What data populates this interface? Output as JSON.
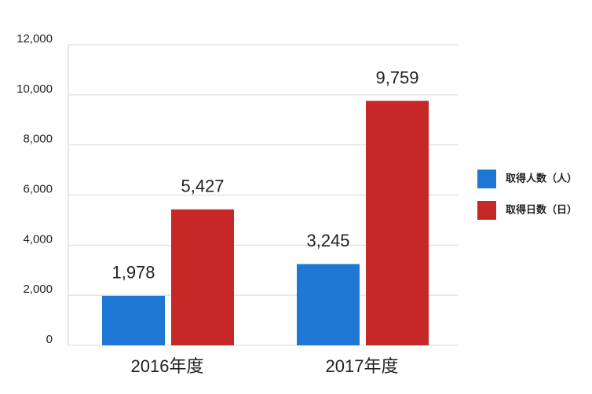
{
  "chart_data": {
    "type": "bar",
    "categories": [
      "2016年度",
      "2017年度"
    ],
    "series": [
      {
        "name": "取得人数（人）",
        "color": "#1e77d2",
        "values": [
          1978,
          3245
        ],
        "value_labels": [
          "1,978",
          "3,245"
        ]
      },
      {
        "name": "取得日数（日）",
        "color": "#c62828",
        "values": [
          5427,
          9759
        ],
        "value_labels": [
          "5,427",
          "9,759"
        ]
      }
    ],
    "ylim": [
      0,
      12000
    ],
    "yticks": [
      0,
      {
        "value": 2000,
        "label": "2,000"
      },
      {
        "value": 4000,
        "label": "4,000"
      },
      {
        "value": 6000,
        "label": "6,000"
      },
      {
        "value": 8000,
        "label": "8,000"
      },
      {
        "value": 10000,
        "label": "10,000"
      },
      {
        "value": 12000,
        "label": "12,000"
      }
    ],
    "grid": true,
    "legend": "right"
  }
}
